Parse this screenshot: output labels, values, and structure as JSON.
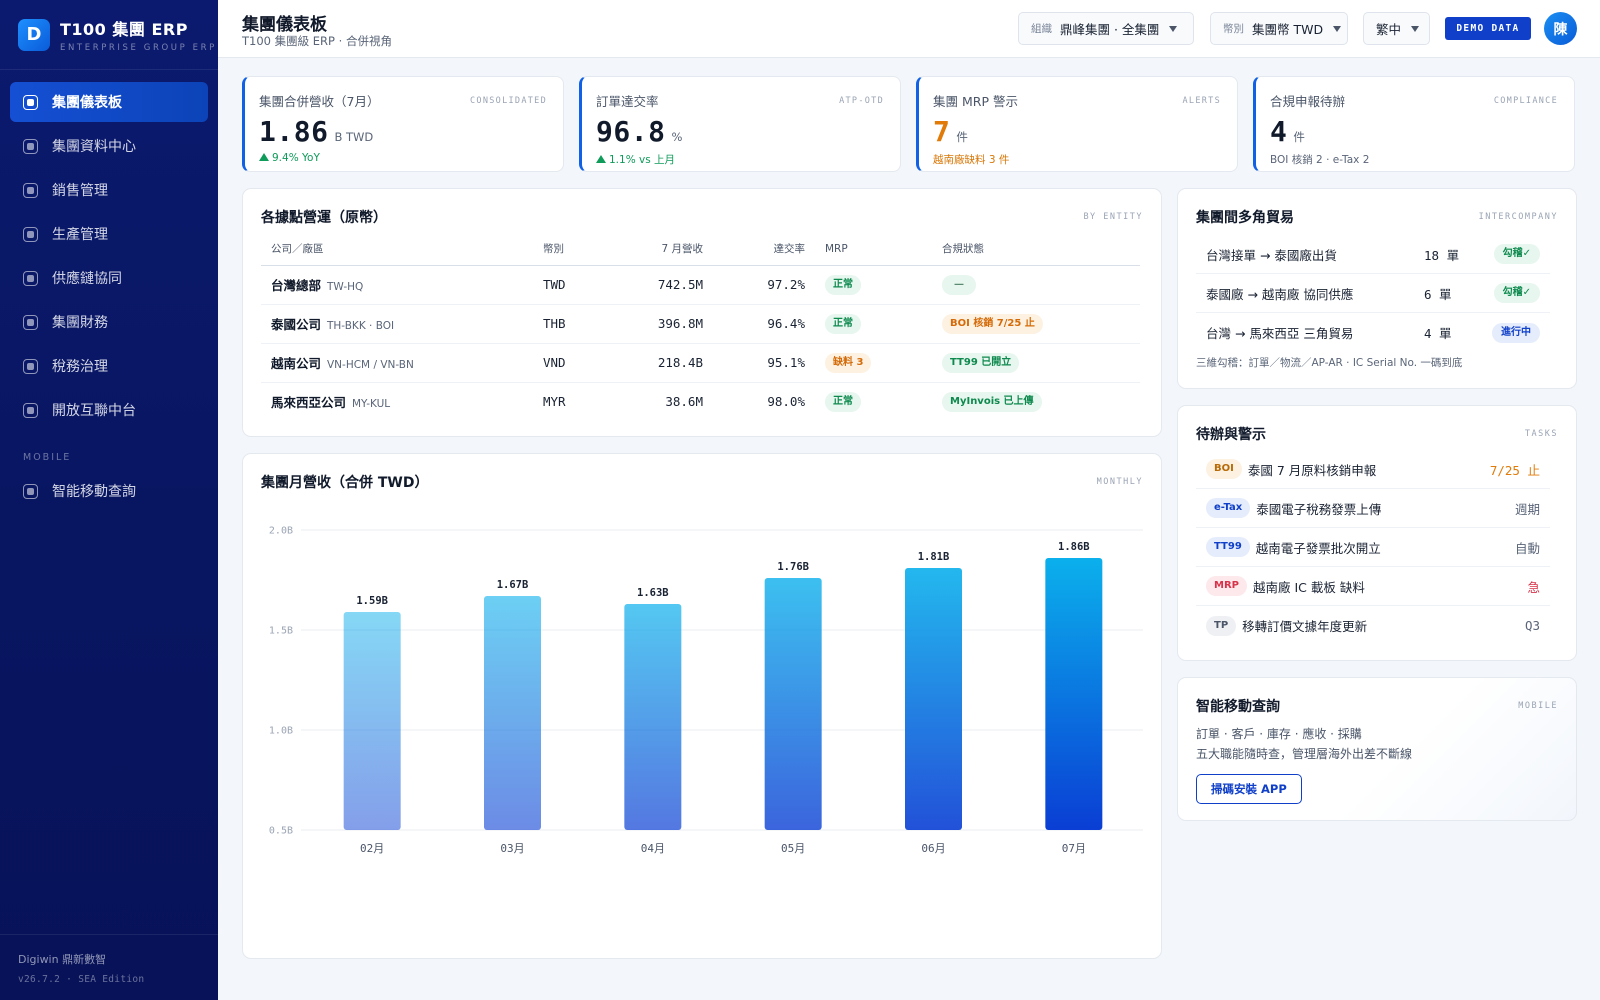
{
  "brand": {
    "logo_letter": "D",
    "title": "T100 集團 ERP",
    "subtitle": "ENTERPRISE GROUP ERP"
  },
  "sidebar": {
    "items": [
      {
        "label": "集團儀表板",
        "active": true
      },
      {
        "label": "集團資料中心"
      },
      {
        "label": "銷售管理"
      },
      {
        "label": "生產管理"
      },
      {
        "label": "供應鏈協同"
      },
      {
        "label": "集團財務"
      },
      {
        "label": "稅務治理"
      },
      {
        "label": "開放互聯中台"
      }
    ],
    "section_mobile": "MOBILE",
    "mobile_item": "智能移動查詢",
    "footer_company": "Digiwin 鼎新數智",
    "footer_version": "v26.7.2 · SEA Edition"
  },
  "header": {
    "title": "集團儀表板",
    "subtitle": "T100 集團級 ERP · 合併視角",
    "org_label": "組織",
    "org_value": "鼎峰集團 · 全集團",
    "currency_label": "幣別",
    "currency_value": "集團幣 TWD",
    "lang_value": "繁中",
    "demo_badge": "DEMO DATA",
    "avatar": "陳"
  },
  "kpis": [
    {
      "label": "集團合併營收（7月）",
      "tag": "CONSOLIDATED",
      "value": "1.86",
      "unit": "B TWD",
      "note": "9.4% YoY"
    },
    {
      "label": "訂單達交率",
      "tag": "ATP-OTD",
      "value": "96.8",
      "unit": "%",
      "note": "1.1% vs 上月"
    },
    {
      "label": "集團 MRP 警示",
      "tag": "ALERTS",
      "value": "7",
      "unit": "件",
      "note": "越南廠缺料 3 件"
    },
    {
      "label": "合規申報待辦",
      "tag": "COMPLIANCE",
      "value": "4",
      "unit": "件",
      "note": "BOI 核銷 2 · e-Tax 2"
    }
  ],
  "entities": {
    "title": "各據點營運（原幣）",
    "tag": "BY ENTITY",
    "headers": [
      "公司／廠區",
      "幣別",
      "7 月營收",
      "達交率",
      "MRP",
      "合規狀態"
    ],
    "rows": [
      {
        "name": "台灣總部",
        "code": "TW-HQ",
        "currency": "TWD",
        "revenue": "742.5M",
        "otd": "97.2%",
        "mrp": "正常",
        "compliance": "—"
      },
      {
        "name": "泰國公司",
        "code": "TH-BKK · BOI",
        "currency": "THB",
        "revenue": "396.8M",
        "otd": "96.4%",
        "mrp": "正常",
        "compliance": "BOI 核銷 7/25 止"
      },
      {
        "name": "越南公司",
        "code": "VN-HCM / VN-BN",
        "currency": "VND",
        "revenue": "218.4B",
        "otd": "95.1%",
        "mrp": "缺料 3",
        "compliance": "TT99 已開立"
      },
      {
        "name": "馬來西亞公司",
        "code": "MY-KUL",
        "currency": "MYR",
        "revenue": "38.6M",
        "otd": "98.0%",
        "mrp": "正常",
        "compliance": "MyInvois 已上傳"
      }
    ]
  },
  "chart_panel": {
    "title": "集團月營收（合併 TWD）",
    "tag": "MONTHLY"
  },
  "chart_data": {
    "type": "bar",
    "title": "集團月營收（合併 TWD）",
    "categories": [
      "02月",
      "03月",
      "04月",
      "05月",
      "06月",
      "07月"
    ],
    "values": [
      1.59,
      1.67,
      1.63,
      1.76,
      1.81,
      1.86
    ],
    "value_labels": [
      "1.59B",
      "1.67B",
      "1.63B",
      "1.76B",
      "1.81B",
      "1.86B"
    ],
    "yticks": [
      0.5,
      1.0,
      1.5,
      2.0
    ],
    "ytick_labels": [
      "0.5B",
      "1.0B",
      "1.5B",
      "2.0B"
    ],
    "ylim": [
      0.5,
      2.0
    ],
    "grid": true
  },
  "intercompany": {
    "title": "集團間多角貿易",
    "tag": "INTERCOMPANY",
    "rows": [
      {
        "route": "台灣接單 → 泰國廠出貨",
        "count": "18 單",
        "status": "勾稽✓"
      },
      {
        "route": "泰國廠 → 越南廠 協同供應",
        "count": "6 單",
        "status": "勾稽✓"
      },
      {
        "route": "台灣 → 馬來西亞 三角貿易",
        "count": "4 單",
        "status": "進行中"
      }
    ],
    "footnote": "三維勾稽：訂單／物流／AP-AR · IC Serial No. 一碼到底"
  },
  "tasks": {
    "title": "待辦與警示",
    "tag": "TASKS",
    "rows": [
      {
        "chip": "BOI",
        "text": "泰國 7 月原料核銷申報",
        "due": "7/25 止"
      },
      {
        "chip": "e-Tax",
        "text": "泰國電子稅務發票上傳",
        "due": "週期"
      },
      {
        "chip": "TT99",
        "text": "越南電子發票批次開立",
        "due": "自動"
      },
      {
        "chip": "MRP",
        "text": "越南廠 IC 載板 缺料",
        "due": "急"
      },
      {
        "chip": "TP",
        "text": "移轉訂價文據年度更新",
        "due": "Q3"
      }
    ]
  },
  "mobile": {
    "title": "智能移動查詢",
    "tag": "MOBILE",
    "line1": "訂單 · 客戶 · 庫存 · 應收 · 採購",
    "line2": "五大職能隨時查，管理層海外出差不斷線",
    "button": "掃碼安裝 APP"
  },
  "colors": {
    "accent": "#1040c9",
    "success": "#0f9b5a",
    "warning": "#e07b0a",
    "danger": "#d6334a",
    "sidebar": "#0b1a6e"
  }
}
